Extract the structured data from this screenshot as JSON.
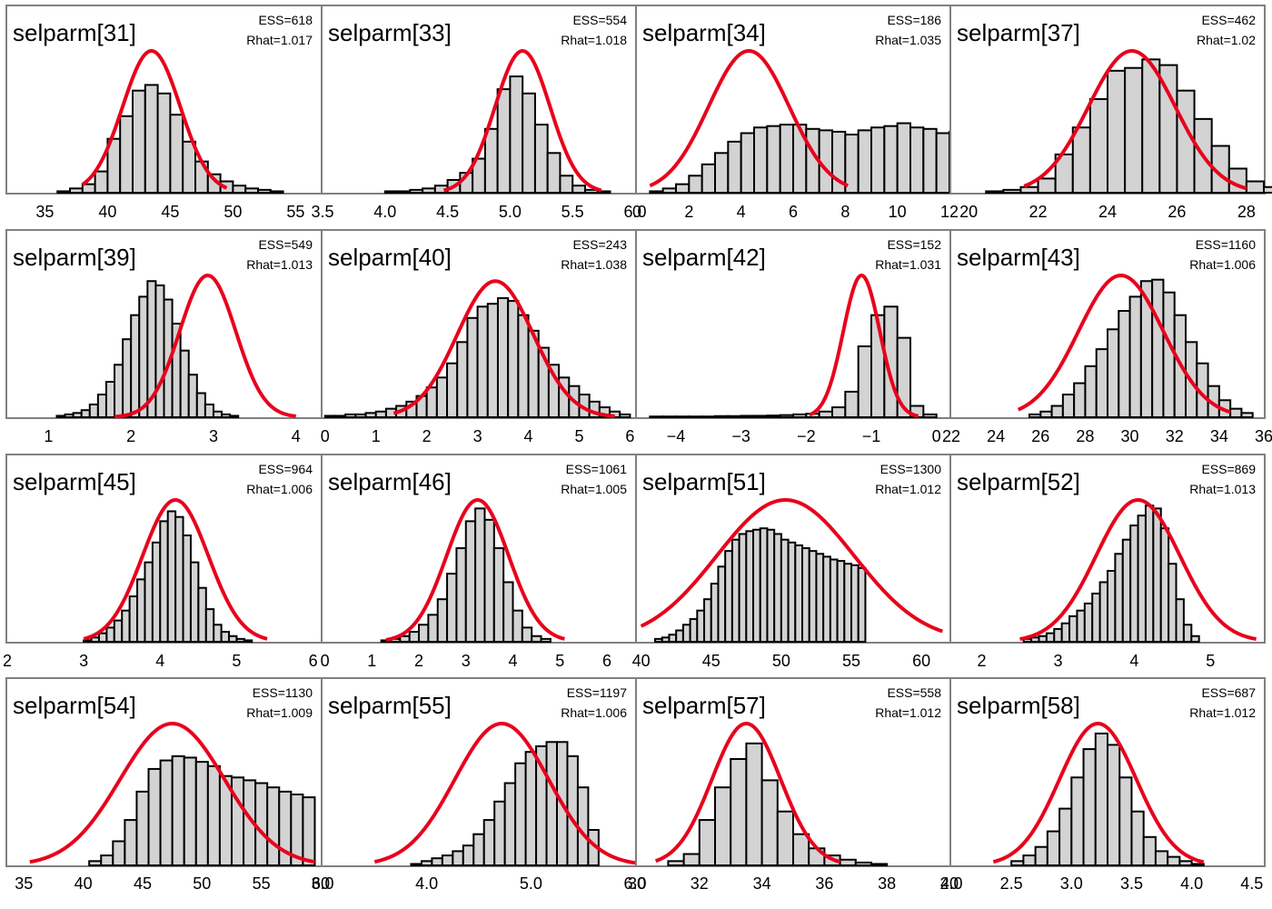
{
  "colors": {
    "bar_fill": "#d3d3d3",
    "bar_stroke": "#000000",
    "curve": "#e8001c",
    "frame": "#808080"
  },
  "chart_data": [
    {
      "type": "bar",
      "title": "selparm[31]",
      "ess": "ESS=618",
      "rhat": "Rhat=1.017",
      "xlim": [
        32,
        57
      ],
      "ticks": [
        35,
        40,
        45,
        50,
        55
      ],
      "tick_labels": [
        "35",
        "40",
        "45",
        "50",
        "55"
      ],
      "bins": {
        "start": 36,
        "width": 1,
        "values": [
          0.01,
          0.03,
          0.06,
          0.15,
          0.38,
          0.54,
          0.72,
          0.76,
          0.7,
          0.55,
          0.36,
          0.22,
          0.13,
          0.08,
          0.05,
          0.03,
          0.02,
          0.01
        ]
      },
      "fit": {
        "mean": 43.5,
        "sd": 2.3,
        "peak": 1.0,
        "from": 38,
        "to": 49.5
      }
    },
    {
      "type": "bar",
      "title": "selparm[33]",
      "ess": "ESS=554",
      "rhat": "Rhat=1.018",
      "xlim": [
        3.5,
        6.0
      ],
      "ticks": [
        3.5,
        4.0,
        4.5,
        5.0,
        5.5,
        6.0
      ],
      "tick_labels": [
        "3.5",
        "4.0",
        "4.5",
        "5.0",
        "5.5",
        "6.0"
      ],
      "bins": {
        "start": 4.0,
        "width": 0.1,
        "values": [
          0.01,
          0.01,
          0.02,
          0.03,
          0.05,
          0.09,
          0.14,
          0.24,
          0.45,
          0.73,
          0.82,
          0.7,
          0.48,
          0.28,
          0.12,
          0.05,
          0.02,
          0.01
        ]
      },
      "fit": {
        "mean": 5.1,
        "sd": 0.22,
        "peak": 1.0,
        "from": 4.47,
        "to": 5.73
      }
    },
    {
      "type": "bar",
      "title": "selparm[34]",
      "ess": "ESS=186",
      "rhat": "Rhat=1.035",
      "xlim": [
        0,
        12
      ],
      "ticks": [
        0,
        2,
        4,
        6,
        8,
        10,
        12
      ],
      "tick_labels": [
        "0",
        "2",
        "4",
        "6",
        "8",
        "10",
        "12"
      ],
      "bins": {
        "start": 0.5,
        "width": 0.5,
        "values": [
          0.01,
          0.03,
          0.06,
          0.12,
          0.2,
          0.28,
          0.36,
          0.42,
          0.46,
          0.47,
          0.48,
          0.48,
          0.45,
          0.44,
          0.43,
          0.41,
          0.44,
          0.46,
          0.47,
          0.49,
          0.46,
          0.45,
          0.42,
          0.43,
          0.41,
          0.4,
          0.38,
          0.37,
          0.37,
          0.36,
          0.35,
          0.34,
          0.32
        ]
      },
      "fit": {
        "mean": 4.3,
        "sd": 1.55,
        "peak": 1.0,
        "from": 0.5,
        "to": 8.1
      }
    },
    {
      "type": "bar",
      "title": "selparm[37]",
      "ess": "ESS=462",
      "rhat": "Rhat=1.02",
      "xlim": [
        19.5,
        28.5
      ],
      "ticks": [
        20,
        22,
        24,
        26,
        28
      ],
      "tick_labels": [
        "20",
        "22",
        "24",
        "26",
        "28"
      ],
      "bins": {
        "start": 20.5,
        "width": 0.5,
        "values": [
          0.01,
          0.02,
          0.04,
          0.1,
          0.27,
          0.46,
          0.66,
          0.86,
          0.88,
          0.94,
          0.9,
          0.72,
          0.52,
          0.33,
          0.17,
          0.08,
          0.04,
          0.02
        ]
      },
      "fit": {
        "mean": 24.7,
        "sd": 1.25,
        "peak": 1.0,
        "from": 21.6,
        "to": 28.0
      }
    },
    {
      "type": "bar",
      "title": "selparm[39]",
      "ess": "ESS=549",
      "rhat": "Rhat=1.013",
      "xlim": [
        0.5,
        4.3
      ],
      "ticks": [
        1,
        2,
        3,
        4
      ],
      "tick_labels": [
        "1",
        "2",
        "3",
        "4"
      ],
      "bins": {
        "start": 1.1,
        "width": 0.1,
        "values": [
          0.01,
          0.02,
          0.03,
          0.05,
          0.09,
          0.16,
          0.25,
          0.37,
          0.55,
          0.72,
          0.85,
          0.96,
          0.93,
          0.83,
          0.66,
          0.47,
          0.3,
          0.17,
          0.09,
          0.04,
          0.02,
          0.01
        ]
      },
      "fit": {
        "mean": 2.93,
        "sd": 0.34,
        "peak": 1.0,
        "from": 1.8,
        "to": 4.0
      }
    },
    {
      "type": "bar",
      "title": "selparm[40]",
      "ess": "ESS=243",
      "rhat": "Rhat=1.038",
      "xlim": [
        -0.05,
        6.1
      ],
      "ticks": [
        0,
        1,
        2,
        3,
        4,
        5,
        6
      ],
      "tick_labels": [
        "0",
        "1",
        "2",
        "3",
        "4",
        "5",
        "6"
      ],
      "bins": {
        "start": 0.0,
        "width": 0.2,
        "values": [
          0.01,
          0.01,
          0.02,
          0.02,
          0.03,
          0.04,
          0.06,
          0.08,
          0.11,
          0.15,
          0.21,
          0.28,
          0.38,
          0.53,
          0.7,
          0.78,
          0.8,
          0.84,
          0.82,
          0.72,
          0.61,
          0.49,
          0.37,
          0.28,
          0.22,
          0.16,
          0.11,
          0.07,
          0.04,
          0.02
        ]
      },
      "fit": {
        "mean": 3.35,
        "sd": 0.75,
        "peak": 0.96,
        "from": 1.35,
        "to": 5.7
      }
    },
    {
      "type": "bar",
      "title": "selparm[42]",
      "ess": "ESS=152",
      "rhat": "Rhat=1.031",
      "xlim": [
        -4.6,
        0.2
      ],
      "ticks": [
        -4,
        -3,
        -2,
        -1,
        0
      ],
      "tick_labels": [
        "−4",
        "−3",
        "−2",
        "−1",
        "0"
      ],
      "bins": {
        "start": -4.4,
        "width": 0.2,
        "values": [
          0.005,
          0.005,
          0.005,
          0.005,
          0.005,
          0.008,
          0.008,
          0.01,
          0.01,
          0.012,
          0.015,
          0.02,
          0.025,
          0.04,
          0.07,
          0.18,
          0.5,
          0.72,
          0.78,
          0.56,
          0.08,
          0.02
        ]
      },
      "fit": {
        "mean": -1.15,
        "sd": 0.28,
        "peak": 1.0,
        "from": -1.95,
        "to": -0.28
      }
    },
    {
      "type": "bar",
      "title": "selparm[43]",
      "ess": "ESS=1160",
      "rhat": "Rhat=1.006",
      "xlim": [
        22,
        36
      ],
      "ticks": [
        22,
        24,
        26,
        28,
        30,
        32,
        34,
        36
      ],
      "tick_labels": [
        "22",
        "24",
        "26",
        "28",
        "30",
        "32",
        "34",
        "36"
      ],
      "bins": {
        "start": 25.5,
        "width": 0.5,
        "values": [
          0.02,
          0.04,
          0.08,
          0.16,
          0.24,
          0.36,
          0.48,
          0.62,
          0.75,
          0.85,
          0.96,
          0.97,
          0.88,
          0.72,
          0.53,
          0.38,
          0.22,
          0.12,
          0.06,
          0.03
        ]
      },
      "fit": {
        "mean": 29.6,
        "sd": 1.9,
        "peak": 1.0,
        "from": 25,
        "to": 34.5
      }
    },
    {
      "type": "bar",
      "title": "selparm[45]",
      "ess": "ESS=964",
      "rhat": "Rhat=1.006",
      "xlim": [
        2,
        6.1
      ],
      "ticks": [
        2,
        3,
        4,
        5,
        6
      ],
      "tick_labels": [
        "2",
        "3",
        "4",
        "5",
        "6"
      ],
      "bins": {
        "start": 3.0,
        "width": 0.1,
        "values": [
          0.01,
          0.03,
          0.06,
          0.1,
          0.15,
          0.22,
          0.32,
          0.44,
          0.56,
          0.7,
          0.85,
          0.92,
          0.88,
          0.75,
          0.56,
          0.38,
          0.23,
          0.12,
          0.07,
          0.04,
          0.02,
          0.01
        ]
      },
      "fit": {
        "mean": 4.2,
        "sd": 0.43,
        "peak": 1.0,
        "from": 3.0,
        "to": 5.4
      }
    },
    {
      "type": "bar",
      "title": "selparm[46]",
      "ess": "ESS=1061",
      "rhat": "Rhat=1.005",
      "xlim": [
        -0.05,
        6.6
      ],
      "ticks": [
        0,
        1,
        2,
        3,
        4,
        5,
        6
      ],
      "tick_labels": [
        "0",
        "1",
        "2",
        "3",
        "4",
        "5",
        "6"
      ],
      "bins": {
        "start": 1.2,
        "width": 0.2,
        "values": [
          0.01,
          0.02,
          0.04,
          0.07,
          0.12,
          0.19,
          0.3,
          0.48,
          0.66,
          0.85,
          0.94,
          0.86,
          0.66,
          0.42,
          0.22,
          0.1,
          0.04,
          0.02
        ]
      },
      "fit": {
        "mean": 3.25,
        "sd": 0.66,
        "peak": 1.0,
        "from": 1.3,
        "to": 5.1
      }
    },
    {
      "type": "bar",
      "title": "selparm[51]",
      "ess": "ESS=1300",
      "rhat": "Rhat=1.012",
      "xlim": [
        39.7,
        62
      ],
      "ticks": [
        40,
        45,
        50,
        55,
        60
      ],
      "tick_labels": [
        "40",
        "45",
        "50",
        "55",
        "60"
      ],
      "bins": {
        "start": 41.0,
        "width": 0.5,
        "values": [
          0.02,
          0.03,
          0.05,
          0.08,
          0.12,
          0.16,
          0.22,
          0.3,
          0.41,
          0.53,
          0.64,
          0.72,
          0.76,
          0.78,
          0.79,
          0.8,
          0.79,
          0.76,
          0.72,
          0.7,
          0.68,
          0.66,
          0.64,
          0.62,
          0.6,
          0.58,
          0.57,
          0.55,
          0.54,
          0.52
        ]
      },
      "fit": {
        "mean": 50.3,
        "sd": 4.9,
        "peak": 1.0,
        "from": 40,
        "to": 61.5
      }
    },
    {
      "type": "bar",
      "title": "selparm[52]",
      "ess": "ESS=869",
      "rhat": "Rhat=1.013",
      "xlim": [
        1.6,
        5.7
      ],
      "ticks": [
        2,
        3,
        4,
        5
      ],
      "tick_labels": [
        "2",
        "3",
        "4",
        "5"
      ],
      "bins": {
        "start": 2.55,
        "width": 0.1,
        "values": [
          0.02,
          0.03,
          0.04,
          0.06,
          0.09,
          0.13,
          0.18,
          0.22,
          0.27,
          0.34,
          0.42,
          0.5,
          0.62,
          0.72,
          0.82,
          0.89,
          0.96,
          0.94,
          0.8,
          0.55,
          0.3,
          0.12,
          0.04
        ]
      },
      "fit": {
        "mean": 4.05,
        "sd": 0.55,
        "peak": 1.0,
        "from": 2.5,
        "to": 5.6
      }
    },
    {
      "type": "bar",
      "title": "selparm[54]",
      "ess": "ESS=1130",
      "rhat": "Rhat=1.009",
      "xlim": [
        33.6,
        60
      ],
      "ticks": [
        35,
        40,
        45,
        50,
        55,
        60
      ],
      "tick_labels": [
        "35",
        "40",
        "45",
        "50",
        "55",
        "60"
      ],
      "bins": {
        "start": 40.5,
        "width": 1,
        "values": [
          0.03,
          0.07,
          0.17,
          0.32,
          0.52,
          0.68,
          0.74,
          0.77,
          0.76,
          0.73,
          0.7,
          0.63,
          0.62,
          0.6,
          0.58,
          0.55,
          0.52,
          0.5,
          0.48
        ]
      },
      "fit": {
        "mean": 47.5,
        "sd": 4.4,
        "peak": 1.0,
        "from": 35.5,
        "to": 59.5
      }
    },
    {
      "type": "bar",
      "title": "selparm[55]",
      "ess": "ESS=1197",
      "rhat": "Rhat=1.006",
      "xlim": [
        3.0,
        6.0
      ],
      "ticks": [
        3.0,
        4.0,
        5.0,
        6.0
      ],
      "tick_labels": [
        "3.0",
        "4.0",
        "5.0",
        "6.0"
      ],
      "bins": {
        "start": 3.85,
        "width": 0.1,
        "values": [
          0.01,
          0.03,
          0.05,
          0.07,
          0.1,
          0.14,
          0.22,
          0.32,
          0.45,
          0.58,
          0.72,
          0.8,
          0.84,
          0.87,
          0.87,
          0.77,
          0.55,
          0.25
        ]
      },
      "fit": {
        "mean": 4.72,
        "sd": 0.45,
        "peak": 1.0,
        "from": 3.5,
        "to": 6.0
      }
    },
    {
      "type": "bar",
      "title": "selparm[57]",
      "ess": "ESS=558",
      "rhat": "Rhat=1.012",
      "xlim": [
        30,
        40
      ],
      "ticks": [
        30,
        32,
        34,
        36,
        38,
        40
      ],
      "tick_labels": [
        "30",
        "32",
        "34",
        "36",
        "38",
        "40"
      ],
      "bins": {
        "start": 31.0,
        "width": 0.5,
        "values": [
          0.03,
          0.08,
          0.32,
          0.55,
          0.75,
          0.86,
          0.6,
          0.38,
          0.22,
          0.12,
          0.07,
          0.04,
          0.02,
          0.01
        ]
      },
      "fit": {
        "mean": 33.5,
        "sd": 1.1,
        "peak": 1.0,
        "from": 30.6,
        "to": 36.5
      }
    },
    {
      "type": "bar",
      "title": "selparm[58]",
      "ess": "ESS=687",
      "rhat": "Rhat=1.012",
      "xlim": [
        2.0,
        4.6
      ],
      "ticks": [
        2.0,
        2.5,
        3.0,
        3.5,
        4.0,
        4.5
      ],
      "tick_labels": [
        "2.0",
        "2.5",
        "3.0",
        "3.5",
        "4.0",
        "4.5"
      ],
      "bins": {
        "start": 2.5,
        "width": 0.1,
        "values": [
          0.03,
          0.07,
          0.13,
          0.24,
          0.4,
          0.62,
          0.82,
          0.93,
          0.85,
          0.62,
          0.38,
          0.2,
          0.1,
          0.06,
          0.03,
          0.01
        ]
      },
      "fit": {
        "mean": 3.22,
        "sd": 0.32,
        "peak": 1.0,
        "from": 2.35,
        "to": 4.1
      }
    }
  ]
}
